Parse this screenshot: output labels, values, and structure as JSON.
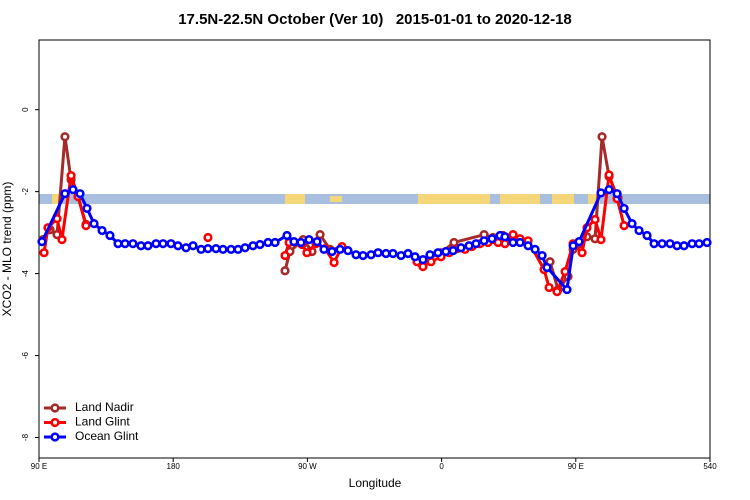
{
  "chart_data": {
    "type": "line",
    "title": "17.5N-22.5N October (Ver 10)   2015-01-01 to 2020-12-18",
    "x_label": "Longitude",
    "y_label": "XCO2 - MLO trend (ppm)",
    "xlim": [
      90,
      540
    ],
    "ylim": [
      -8.5,
      1.7
    ],
    "xticks": [
      {
        "value": 90,
        "label": "90 E"
      },
      180,
      {
        "value": 270,
        "label": "90 W"
      },
      {
        "value": 360,
        "label": "0"
      },
      {
        "value": 450,
        "label": "90 E"
      },
      540
    ],
    "yticks": [
      0,
      -2,
      -4,
      -6,
      -8
    ],
    "legend": "bottom-left",
    "series": [
      {
        "name": "Land Nadir",
        "color": "#a52a2a",
        "x": [
          92.7,
          97.4,
          102.1,
          107.4,
          111.5,
          116.2,
          121.5,
          null,
          255.0,
          258.3,
          267.1,
          273.1,
          278.5,
          285.2,
          293.2,
          null,
          345.5,
          359.6,
          368.3,
          388.5,
          394.5,
          401.2,
          null,
          429.4,
          432.7,
          438.1,
          444.8,
          448.2,
          452.8,
          457.5,
          462.9,
          467.6,
          472.3,
          478.3
        ],
        "values": [
          -3.17,
          -2.93,
          -3.05,
          -0.66,
          -1.71,
          -2.12,
          -2.8,
          null,
          -3.93,
          -3.46,
          -3.17,
          -3.46,
          -3.05,
          -3.41,
          -3.37,
          null,
          -3.73,
          -3.49,
          -3.24,
          -3.05,
          -3.12,
          -3.07,
          null,
          -3.85,
          -3.71,
          -4.39,
          -4.07,
          -3.41,
          -3.27,
          -3.1,
          -3.15,
          -0.66,
          -1.63,
          -2.15
        ]
      },
      {
        "name": "Land Glint",
        "color": "#ff0000",
        "x": [
          93.4,
          96.0,
          102.1,
          105.4,
          111.5,
          116.2,
          121.5,
          null,
          203.3,
          null,
          255.0,
          257.7,
          266.4,
          269.7,
          275.8,
          281.8,
          287.9,
          293.2,
          null,
          343.5,
          347.5,
          352.9,
          359.6,
          365.0,
          370.4,
          375.7,
          380.4,
          385.8,
          391.1,
          397.9,
          402.5,
          407.9,
          412.6,
          418.0,
          428.7,
          432.1,
          437.4,
          442.8,
          448.2,
          454.2,
          457.5,
          462.9,
          466.9,
          472.3,
          477.7,
          482.4
        ],
        "values": [
          -3.49,
          -2.88,
          -2.66,
          -3.17,
          -1.61,
          -2.12,
          -2.83,
          null,
          -3.12,
          null,
          -3.56,
          -3.24,
          -3.29,
          -3.49,
          -3.27,
          -3.39,
          -3.73,
          -3.34,
          null,
          -3.71,
          -3.83,
          -3.71,
          -3.59,
          -3.49,
          -3.39,
          -3.41,
          -3.34,
          -3.27,
          -3.24,
          -3.24,
          -3.27,
          -3.05,
          -3.15,
          -3.2,
          -3.9,
          -4.34,
          -4.44,
          -3.95,
          -3.27,
          -3.49,
          -2.88,
          -2.68,
          -3.17,
          -1.59,
          -2.17,
          -2.83
        ]
      },
      {
        "name": "Ocean Glint",
        "color": "#0000ff",
        "x": [
          92.0,
          107.4,
          112.8,
          117.5,
          122.2,
          126.9,
          132.3,
          137.6,
          143.0,
          147.7,
          153.0,
          158.4,
          163.1,
          168.5,
          173.2,
          178.5,
          183.2,
          188.6,
          193.3,
          198.7,
          203.3,
          208.7,
          213.4,
          218.8,
          223.5,
          228.2,
          233.5,
          238.2,
          243.6,
          248.3,
          256.3,
          261.0,
          265.7,
          271.1,
          276.5,
          281.1,
          286.5,
          291.9,
          297.2,
          302.6,
          307.3,
          312.7,
          317.4,
          322.7,
          327.4,
          332.8,
          337.5,
          342.2,
          347.5,
          352.2,
          357.6,
          362.9,
          367.7,
          373.0,
          378.4,
          383.1,
          388.5,
          393.8,
          399.2,
          402.5,
          407.9,
          412.6,
          418.0,
          422.7,
          427.4,
          430.7,
          444.1,
          448.2,
          452.2,
          466.9,
          472.3,
          477.7,
          482.4,
          487.7,
          492.4,
          497.8,
          502.5,
          507.9,
          513.2,
          517.9,
          522.6,
          528.0,
          532.7,
          538.0
        ],
        "values": [
          -3.22,
          -2.05,
          -1.95,
          -2.05,
          -2.41,
          -2.78,
          -2.95,
          -3.07,
          -3.27,
          -3.27,
          -3.27,
          -3.32,
          -3.32,
          -3.27,
          -3.27,
          -3.27,
          -3.32,
          -3.37,
          -3.32,
          -3.41,
          -3.39,
          -3.39,
          -3.41,
          -3.41,
          -3.41,
          -3.37,
          -3.32,
          -3.29,
          -3.24,
          -3.24,
          -3.07,
          -3.22,
          -3.24,
          -3.17,
          -3.22,
          -3.41,
          -3.46,
          -3.41,
          -3.44,
          -3.54,
          -3.56,
          -3.54,
          -3.49,
          -3.51,
          -3.51,
          -3.56,
          -3.51,
          -3.59,
          -3.66,
          -3.54,
          -3.49,
          -3.46,
          -3.44,
          -3.37,
          -3.32,
          -3.27,
          -3.2,
          -3.15,
          -3.07,
          -3.1,
          -3.24,
          -3.24,
          -3.32,
          -3.41,
          -3.56,
          -3.85,
          -4.39,
          -3.32,
          -3.22,
          -2.03,
          -1.95,
          -2.05,
          -2.41,
          -2.78,
          -2.95,
          -3.07,
          -3.27,
          -3.27,
          -3.27,
          -3.32,
          -3.32,
          -3.27,
          -3.27,
          -3.24
        ]
      }
    ]
  }
}
